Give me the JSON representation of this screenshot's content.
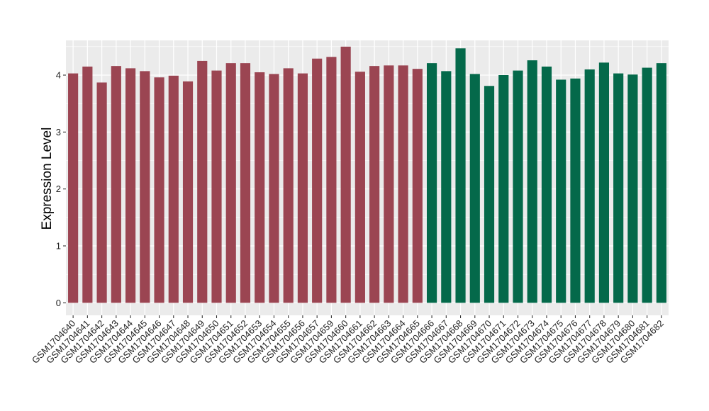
{
  "chart_data": {
    "type": "bar",
    "title": "",
    "xlabel": "",
    "ylabel": "Expression Level",
    "ylim": [
      -0.22,
      4.61
    ],
    "yticks": [
      0,
      1,
      2,
      3,
      4
    ],
    "grid": true,
    "background": "#EBEBEB",
    "categories": [
      "GSM1704640",
      "GSM1704641",
      "GSM1704642",
      "GSM1704643",
      "GSM1704644",
      "GSM1704645",
      "GSM1704646",
      "GSM1704647",
      "GSM1704648",
      "GSM1704649",
      "GSM1704650",
      "GSM1704651",
      "GSM1704652",
      "GSM1704653",
      "GSM1704654",
      "GSM1704655",
      "GSM1704656",
      "GSM1704657",
      "GSM1704659",
      "GSM1704660",
      "GSM1704661",
      "GSM1704662",
      "GSM1704663",
      "GSM1704664",
      "GSM1704665",
      "GSM1704666",
      "GSM1704667",
      "GSM1704668",
      "GSM1704669",
      "GSM1704670",
      "GSM1704671",
      "GSM1704672",
      "GSM1704673",
      "GSM1704674",
      "GSM1704675",
      "GSM1704676",
      "GSM1704677",
      "GSM1704678",
      "GSM1704679",
      "GSM1704680",
      "GSM1704681",
      "GSM1704682"
    ],
    "values": [
      4.03,
      4.15,
      3.87,
      4.16,
      4.12,
      4.07,
      3.96,
      3.99,
      3.89,
      4.25,
      4.08,
      4.21,
      4.21,
      4.05,
      4.02,
      4.12,
      4.03,
      4.29,
      4.32,
      4.5,
      4.06,
      4.16,
      4.17,
      4.17,
      4.11,
      4.21,
      4.07,
      4.47,
      4.02,
      3.81,
      4.0,
      4.08,
      4.26,
      4.15,
      3.92,
      3.94,
      4.1,
      4.22,
      4.03,
      4.01,
      4.13,
      4.21
    ],
    "group_colors": [
      "#9B4552",
      "#04694A"
    ],
    "group_sizes": [
      25,
      17
    ]
  }
}
